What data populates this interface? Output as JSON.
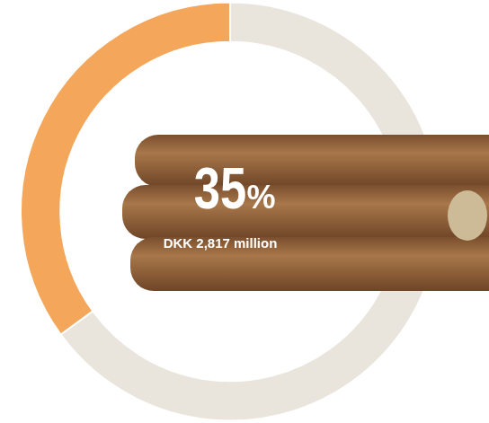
{
  "chart_data": {
    "type": "doughnut",
    "categories": [
      null,
      null
    ],
    "values": [
      65,
      35
    ],
    "value_labels": [
      null,
      "35%"
    ],
    "colors": [
      "#eae5dc",
      "#f4a75a"
    ],
    "annotation": "DKK 2,817 million",
    "legend": false
  }
}
